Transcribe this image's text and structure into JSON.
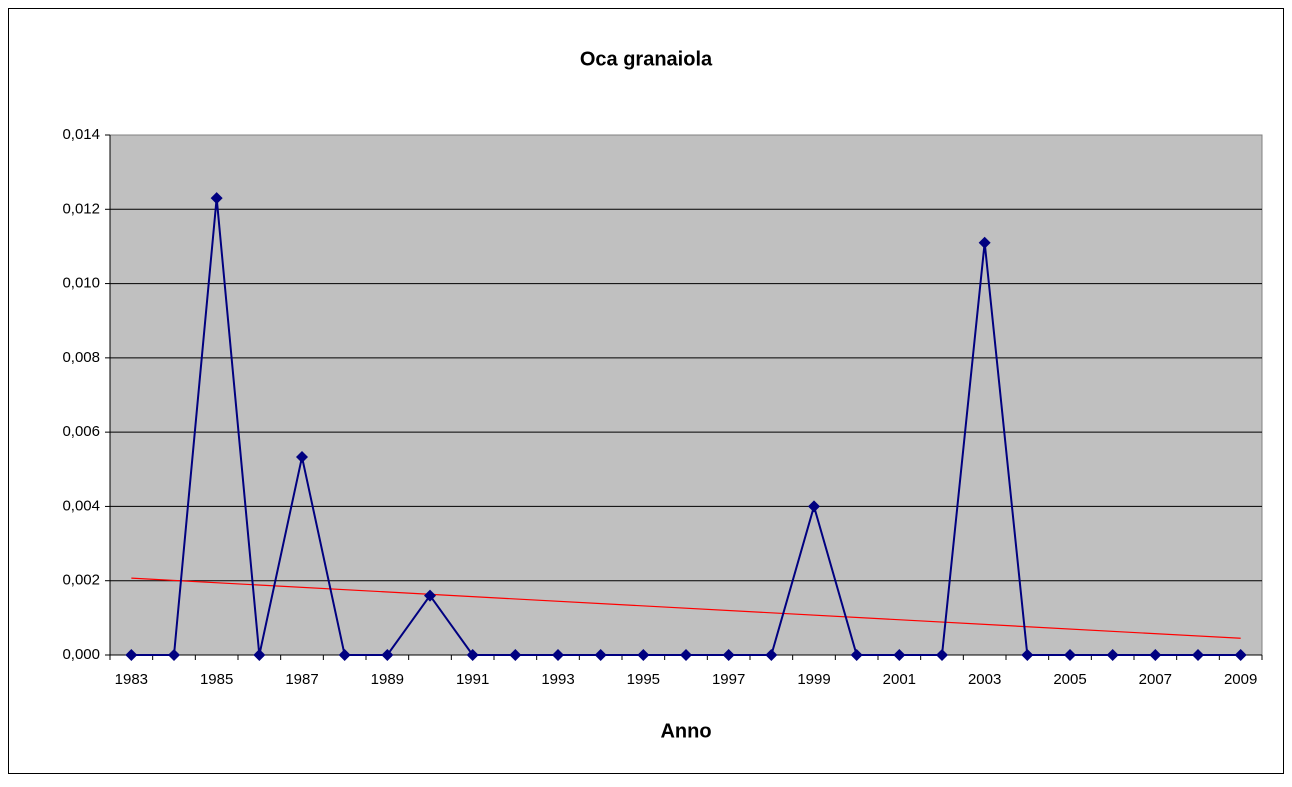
{
  "chart_data": {
    "type": "line",
    "title": "Oca granaiola",
    "x_label": "Anno",
    "categories": [
      "1983",
      null,
      "1985",
      null,
      "1987",
      null,
      "1989",
      null,
      "1991",
      null,
      "1993",
      null,
      "1995",
      null,
      "1997",
      null,
      "1999",
      null,
      "2001",
      null,
      "2003",
      null,
      "2005",
      null,
      "2007",
      null,
      "2009"
    ],
    "series": [
      {
        "color": "#000080",
        "values": [
          0,
          0,
          0.0123,
          0,
          0.00533,
          0,
          0,
          0.0016,
          0,
          0,
          0,
          0,
          0,
          0,
          0,
          0,
          0.004,
          0,
          0,
          0,
          0.0111,
          0,
          0,
          0,
          0,
          0,
          0
        ]
      }
    ],
    "trendline": {
      "color": "#ff0000",
      "start": 0.00207,
      "end": 0.00045
    },
    "ylim": [
      0,
      0.014
    ],
    "yticks": [
      {
        "value": 0,
        "label": "0,000"
      },
      {
        "value": 0.002,
        "label": "0,002"
      },
      {
        "value": 0.004,
        "label": "0,004"
      },
      {
        "value": 0.006,
        "label": "0,006"
      },
      {
        "value": 0.008,
        "label": "0,008"
      },
      {
        "value": 0.01,
        "label": "0,010"
      },
      {
        "value": 0.012,
        "label": "0,012"
      },
      {
        "value": 0.014,
        "label": "0,014"
      }
    ],
    "grid": true
  }
}
